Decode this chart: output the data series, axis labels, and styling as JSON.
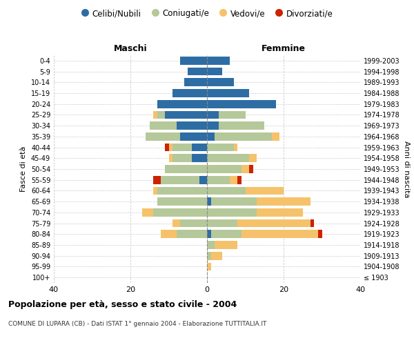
{
  "age_groups": [
    "100+",
    "95-99",
    "90-94",
    "85-89",
    "80-84",
    "75-79",
    "70-74",
    "65-69",
    "60-64",
    "55-59",
    "50-54",
    "45-49",
    "40-44",
    "35-39",
    "30-34",
    "25-29",
    "20-24",
    "15-19",
    "10-14",
    "5-9",
    "0-4"
  ],
  "birth_years": [
    "≤ 1903",
    "1904-1908",
    "1909-1913",
    "1914-1918",
    "1919-1923",
    "1924-1928",
    "1929-1933",
    "1934-1938",
    "1939-1943",
    "1944-1948",
    "1949-1953",
    "1954-1958",
    "1959-1963",
    "1964-1968",
    "1969-1973",
    "1974-1978",
    "1979-1983",
    "1984-1988",
    "1989-1993",
    "1994-1998",
    "1999-2003"
  ],
  "maschi": {
    "celibi": [
      0,
      0,
      0,
      0,
      0,
      0,
      0,
      0,
      0,
      2,
      0,
      4,
      4,
      7,
      8,
      11,
      13,
      9,
      6,
      5,
      7
    ],
    "coniugati": [
      0,
      0,
      0,
      0,
      8,
      7,
      14,
      13,
      13,
      10,
      11,
      5,
      5,
      9,
      7,
      2,
      0,
      0,
      0,
      0,
      0
    ],
    "vedovi": [
      0,
      0,
      0,
      0,
      4,
      2,
      3,
      0,
      1,
      0,
      0,
      1,
      1,
      0,
      0,
      1,
      0,
      0,
      0,
      0,
      0
    ],
    "divorziati": [
      0,
      0,
      0,
      0,
      0,
      0,
      0,
      0,
      0,
      2,
      0,
      0,
      1,
      0,
      0,
      0,
      0,
      0,
      0,
      0,
      0
    ]
  },
  "femmine": {
    "nubili": [
      0,
      0,
      0,
      0,
      1,
      0,
      0,
      1,
      0,
      0,
      0,
      0,
      0,
      2,
      3,
      3,
      18,
      11,
      7,
      4,
      6
    ],
    "coniugate": [
      0,
      0,
      1,
      2,
      8,
      8,
      13,
      12,
      10,
      6,
      9,
      11,
      7,
      15,
      12,
      7,
      0,
      0,
      0,
      0,
      0
    ],
    "vedove": [
      0,
      1,
      3,
      6,
      20,
      19,
      12,
      14,
      10,
      2,
      2,
      2,
      1,
      2,
      0,
      0,
      0,
      0,
      0,
      0,
      0
    ],
    "divorziate": [
      0,
      0,
      0,
      0,
      1,
      1,
      0,
      0,
      0,
      1,
      1,
      0,
      0,
      0,
      0,
      0,
      0,
      0,
      0,
      0,
      0
    ]
  },
  "colors": {
    "celibi": "#2e6da4",
    "coniugati": "#b5c89a",
    "vedovi": "#f5c26b",
    "divorziati": "#cc2200"
  },
  "xlim": 40,
  "title": "Popolazione per età, sesso e stato civile - 2004",
  "subtitle": "COMUNE DI LUPARA (CB) - Dati ISTAT 1° gennaio 2004 - Elaborazione TUTTITALIA.IT",
  "ylabel_left": "Fasce di età",
  "ylabel_right": "Anni di nascita",
  "legend_labels": [
    "Celibi/Nubili",
    "Coniugati/e",
    "Vedovi/e",
    "Divorziati/e"
  ],
  "maschi_label": "Maschi",
  "femmine_label": "Femmine",
  "background_color": "#ffffff",
  "grid_color": "#cccccc"
}
